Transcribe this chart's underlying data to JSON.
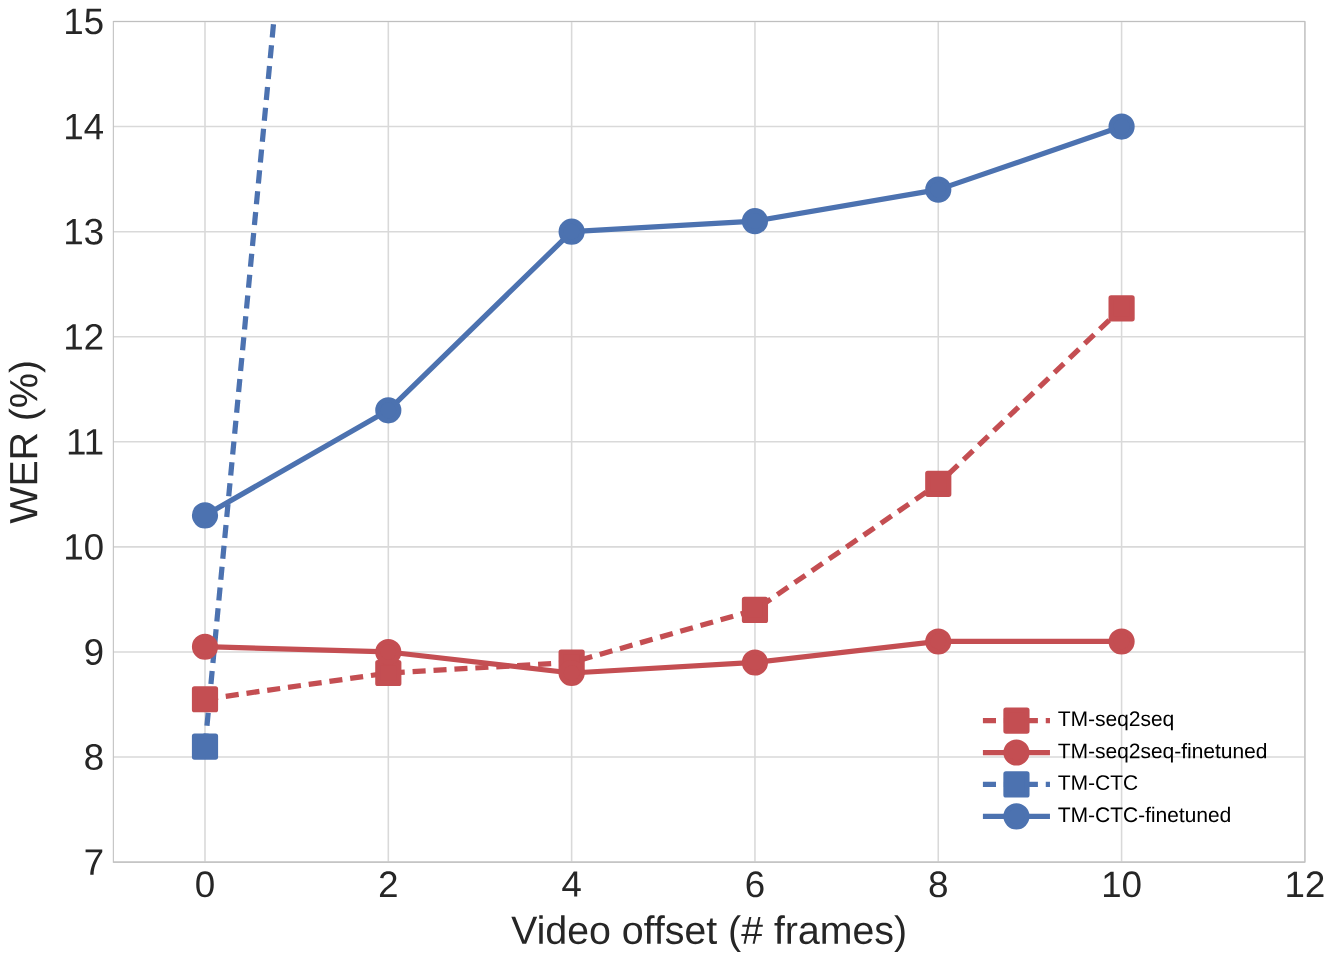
{
  "chart_data": {
    "type": "line",
    "xlabel": "Video offset (# frames)",
    "ylabel": "WER (%)",
    "xlim": [
      -1,
      12
    ],
    "xticks": [
      0,
      2,
      4,
      6,
      8,
      10,
      12
    ],
    "ylim": [
      7,
      15
    ],
    "yticks": [
      7,
      8,
      9,
      10,
      11,
      12,
      13,
      14,
      15
    ],
    "grid": true,
    "legend": "bottom right",
    "x": [
      0,
      2,
      4,
      6,
      8,
      10
    ],
    "series": [
      {
        "name": "TM-seq2seq",
        "color": "#c44e52",
        "line_style": "dashed",
        "marker": "square",
        "values": [
          8.55,
          8.8,
          8.9,
          9.4,
          10.6,
          12.27
        ]
      },
      {
        "name": "TM-seq2seq-finetuned",
        "color": "#c44e52",
        "line_style": "solid",
        "marker": "circle",
        "values": [
          9.05,
          9.0,
          8.8,
          8.9,
          9.1,
          9.1
        ]
      },
      {
        "name": "TM-CTC",
        "color": "#4c72b0",
        "line_style": "dashed",
        "marker": "square",
        "x": [
          0,
          0.75
        ],
        "values": [
          8.1,
          15.0
        ]
      },
      {
        "name": "TM-CTC-finetuned",
        "color": "#4c72b0",
        "line_style": "solid",
        "marker": "circle",
        "values": [
          10.3,
          11.3,
          13.0,
          13.1,
          13.4,
          14.0
        ]
      }
    ]
  }
}
